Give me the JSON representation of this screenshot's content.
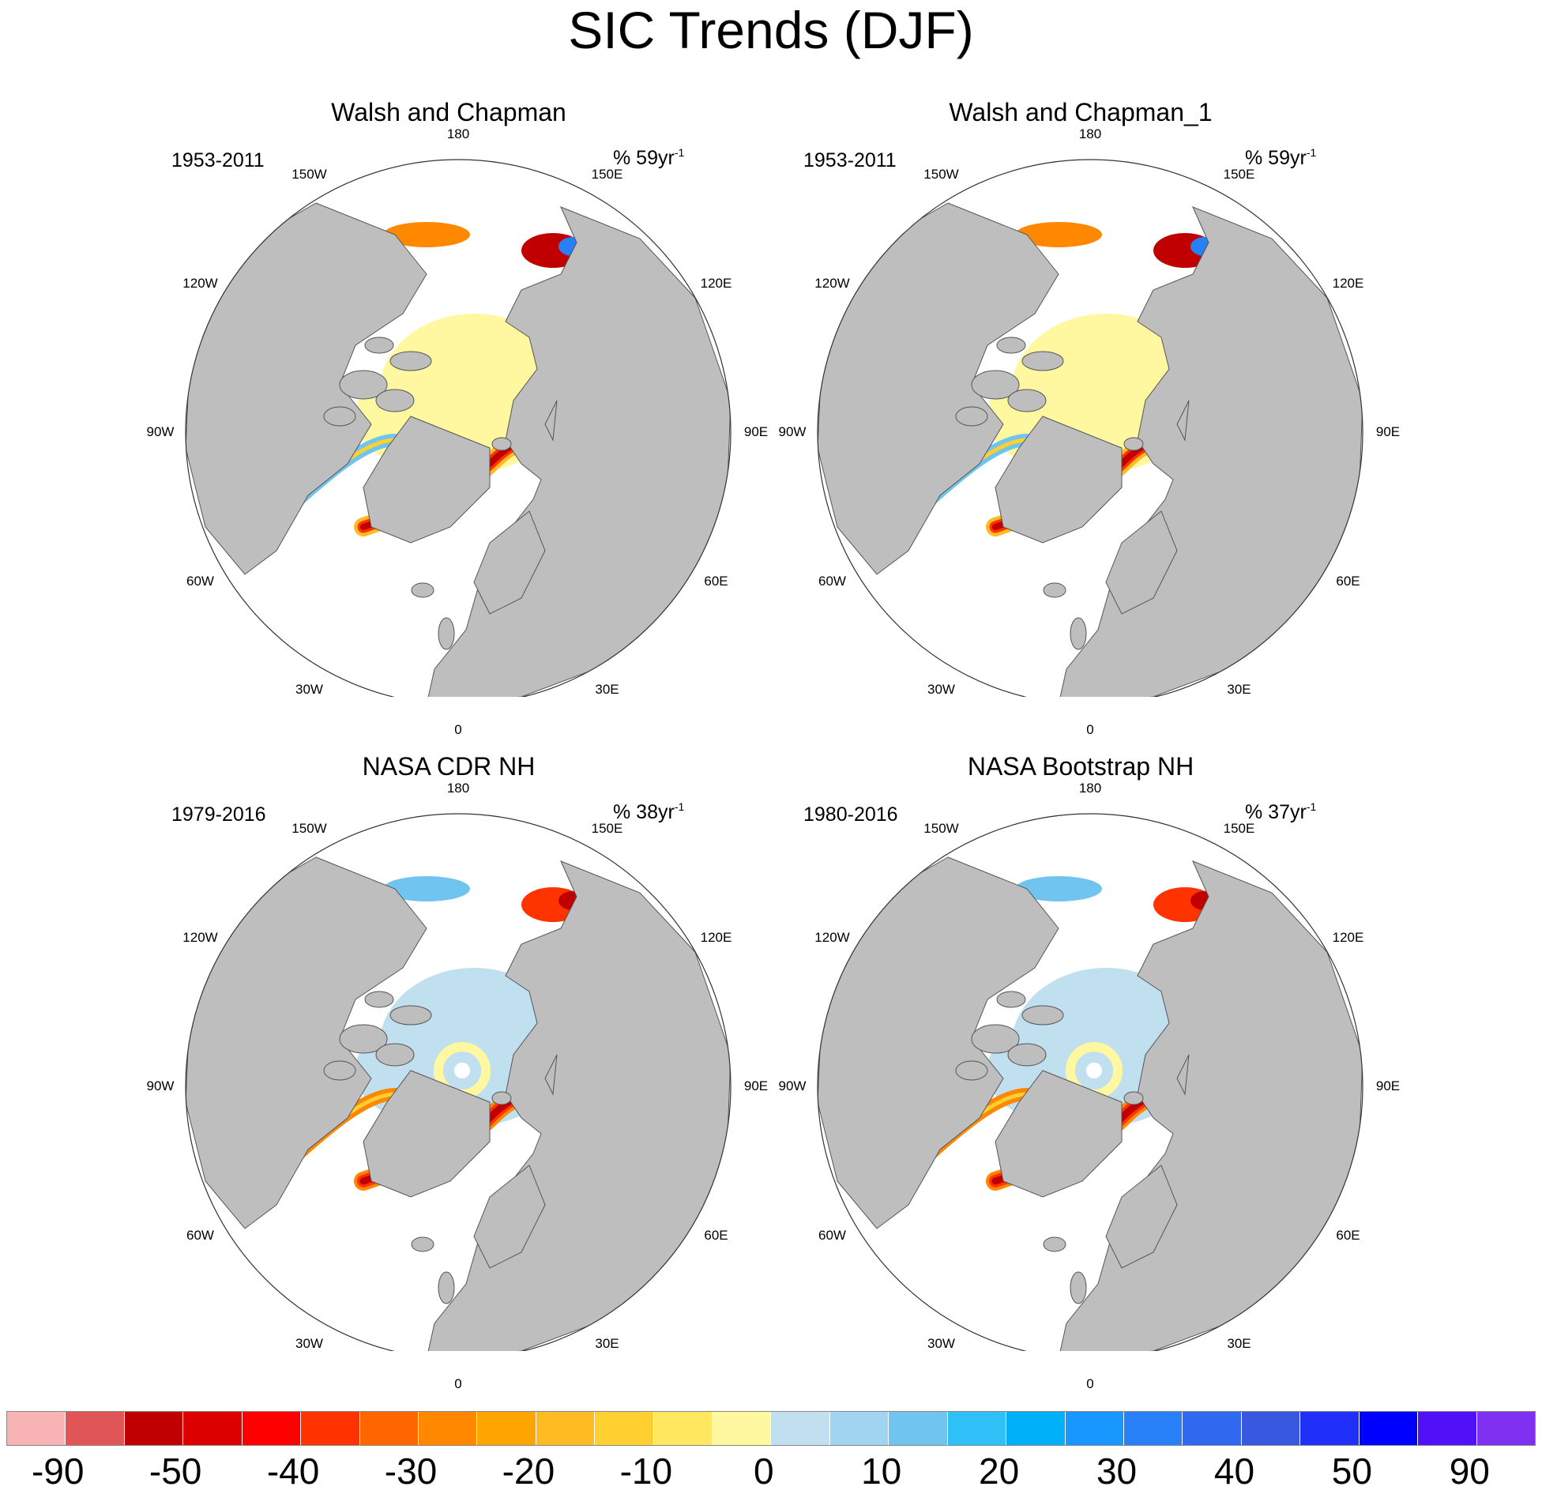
{
  "title": "SIC Trends (DJF)",
  "panels": [
    {
      "title": "Walsh and Chapman",
      "period": "1953-2011",
      "units_prefix": "% 59yr",
      "units_sup": "-1",
      "style": "wc"
    },
    {
      "title": "Walsh and Chapman_1",
      "period": "1953-2011",
      "units_prefix": "% 59yr",
      "units_sup": "-1",
      "style": "wc"
    },
    {
      "title": "NASA CDR NH",
      "period": "1979-2016",
      "units_prefix": "% 38yr",
      "units_sup": "-1",
      "style": "nasa"
    },
    {
      "title": "NASA Bootstrap NH",
      "period": "1980-2016",
      "units_prefix": "% 37yr",
      "units_sup": "-1",
      "style": "nasa"
    }
  ],
  "longitude_labels": [
    "180",
    "150E",
    "120E",
    "90E",
    "60E",
    "30E",
    "0",
    "30W",
    "60W",
    "90W",
    "120W",
    "150W"
  ],
  "colorbar": {
    "colors": [
      "#f8b4b4",
      "#e05555",
      "#c00000",
      "#dd0000",
      "#ff0000",
      "#ff3300",
      "#ff6600",
      "#ff8800",
      "#ffa500",
      "#ffbb22",
      "#ffd030",
      "#ffe860",
      "#fff8a0",
      "#c0e0f0",
      "#a0d4f0",
      "#70c4f0",
      "#30c0f8",
      "#00b0f8",
      "#1898ff",
      "#2880f8",
      "#3068f0",
      "#3858e0",
      "#2030f8",
      "#0000ff",
      "#5010f8",
      "#8030f0"
    ],
    "labels": [
      "-90",
      "-50",
      "-40",
      "-30",
      "-20",
      "-10",
      "0",
      "10",
      "20",
      "30",
      "40",
      "50",
      "90"
    ]
  },
  "colors": {
    "land": "#bebebe",
    "coast": "#555555",
    "ocean": "#ffffff"
  }
}
